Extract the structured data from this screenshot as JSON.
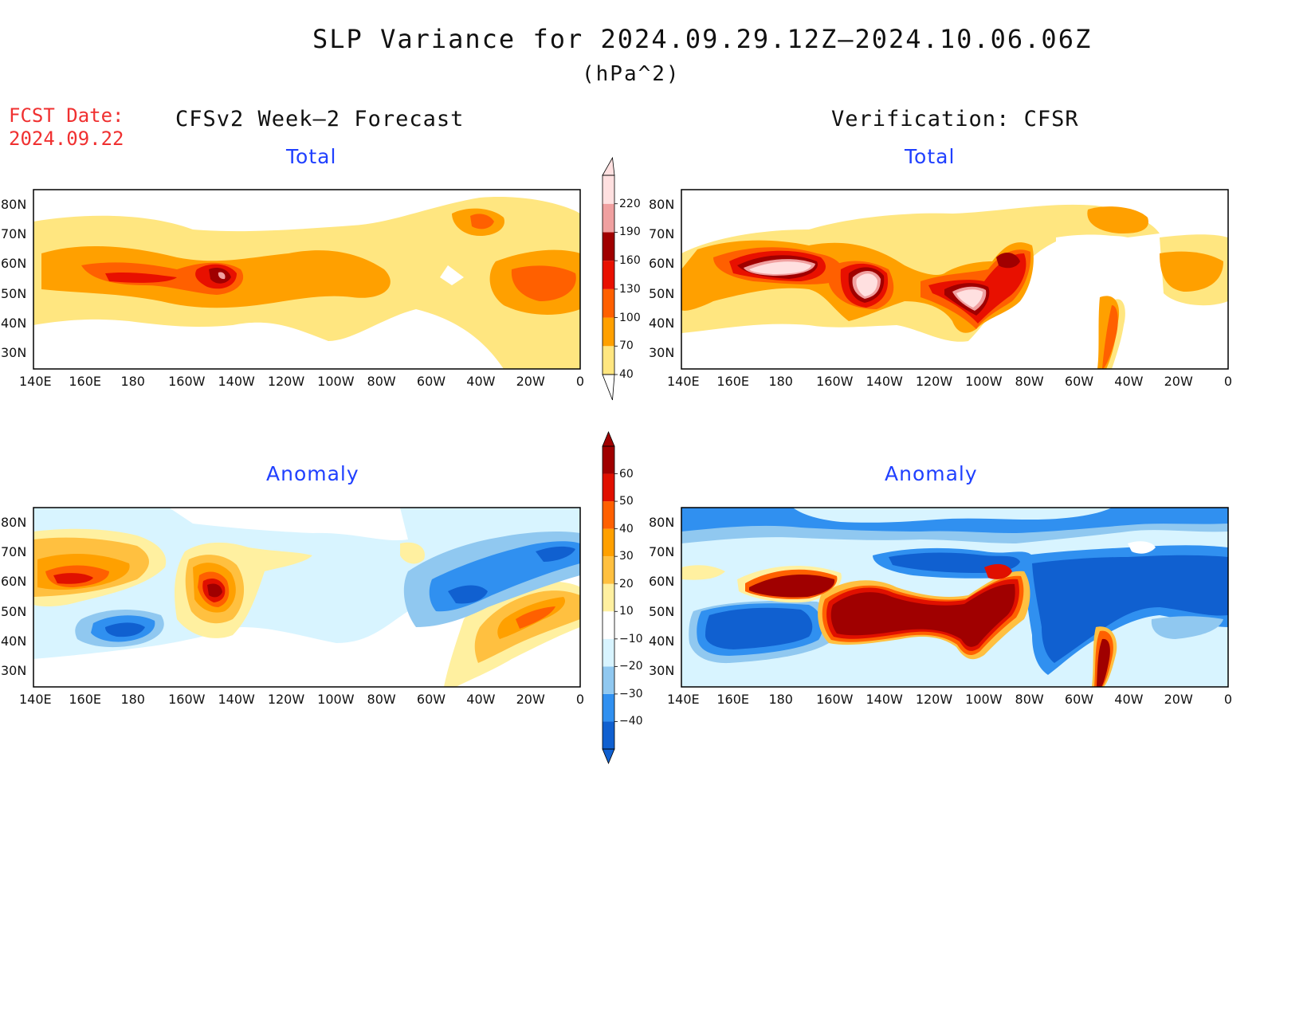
{
  "header": {
    "title": "SLP Variance for 2024.09.29.12Z–2024.10.06.06Z",
    "units": "(hPa^2)",
    "fcst_label": "FCST Date:",
    "fcst_date": "2024.09.22"
  },
  "columns": {
    "left": "CFSv2 Week–2 Forecast",
    "right": "Verification: CFSR"
  },
  "panels": {
    "total_label": "Total",
    "anomaly_label": "Anomaly"
  },
  "axes": {
    "lat_labels": [
      "80N",
      "70N",
      "60N",
      "50N",
      "40N",
      "30N"
    ],
    "lon_labels": [
      "140E",
      "160E",
      "180",
      "160W",
      "140W",
      "120W",
      "100W",
      "80W",
      "60W",
      "40W",
      "20W",
      "0"
    ]
  },
  "colorbars": {
    "total": {
      "levels": [
        "40",
        "70",
        "100",
        "130",
        "160",
        "190",
        "220"
      ],
      "colors": [
        "#ffe680",
        "#ffa000",
        "#ff6000",
        "#e81000",
        "#a00000",
        "#f0a0a0",
        "#ffe0e0"
      ]
    },
    "anomaly": {
      "levels": [
        "−40",
        "−30",
        "−20",
        "−10",
        "10",
        "20",
        "30",
        "40",
        "50",
        "60"
      ],
      "colors": [
        "#1060d0",
        "#3090f0",
        "#90c8f0",
        "#d8f4ff",
        "#ffffff",
        "#fff0a0",
        "#ffc040",
        "#ffa000",
        "#ff6000",
        "#e01000",
        "#a00000"
      ]
    }
  }
}
